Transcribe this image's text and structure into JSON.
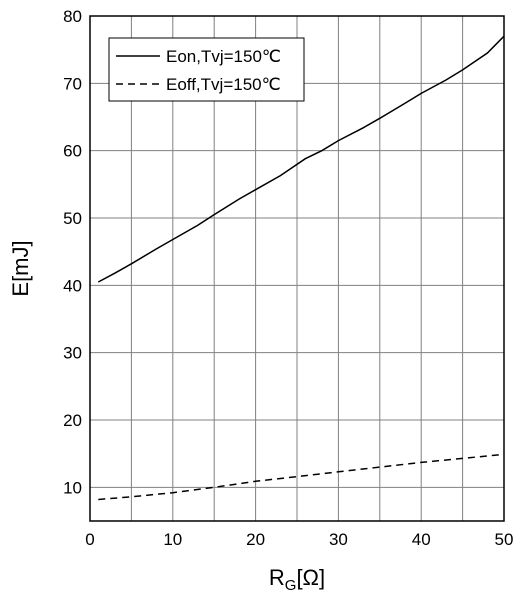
{
  "chart_data": {
    "type": "line",
    "xlabel": {
      "main": "R",
      "sub": "G",
      "unit": "[Ω]"
    },
    "ylabel": "E[mJ]",
    "xlim": [
      0,
      50
    ],
    "ylim": [
      5,
      80
    ],
    "x_ticks": [
      0,
      10,
      20,
      30,
      40,
      50
    ],
    "y_ticks": [
      10,
      20,
      30,
      40,
      50,
      60,
      70,
      80
    ],
    "x_minor_step": 5,
    "grid": true,
    "legend_position": "top-left",
    "colors": {
      "line": "#000000",
      "grid": "#808080",
      "frame": "#000000"
    },
    "series": [
      {
        "name": "Eon,Tvj=150℃",
        "style": "solid",
        "x": [
          1,
          3,
          5,
          8,
          10,
          13,
          15,
          18,
          20,
          23,
          26,
          28,
          30,
          33,
          35,
          38,
          40,
          43,
          45,
          48,
          50
        ],
        "y": [
          40.5,
          41.8,
          43.2,
          45.4,
          46.8,
          48.9,
          50.5,
          52.8,
          54.2,
          56.3,
          58.8,
          60.0,
          61.5,
          63.4,
          64.8,
          67.0,
          68.5,
          70.5,
          72.0,
          74.5,
          77.0
        ]
      },
      {
        "name": "Eoff,Tvj=150℃",
        "style": "dashed",
        "x": [
          1,
          5,
          10,
          15,
          20,
          25,
          30,
          35,
          40,
          45,
          50
        ],
        "y": [
          8.2,
          8.6,
          9.2,
          10.0,
          10.9,
          11.6,
          12.3,
          13.0,
          13.7,
          14.3,
          14.9
        ]
      }
    ]
  }
}
